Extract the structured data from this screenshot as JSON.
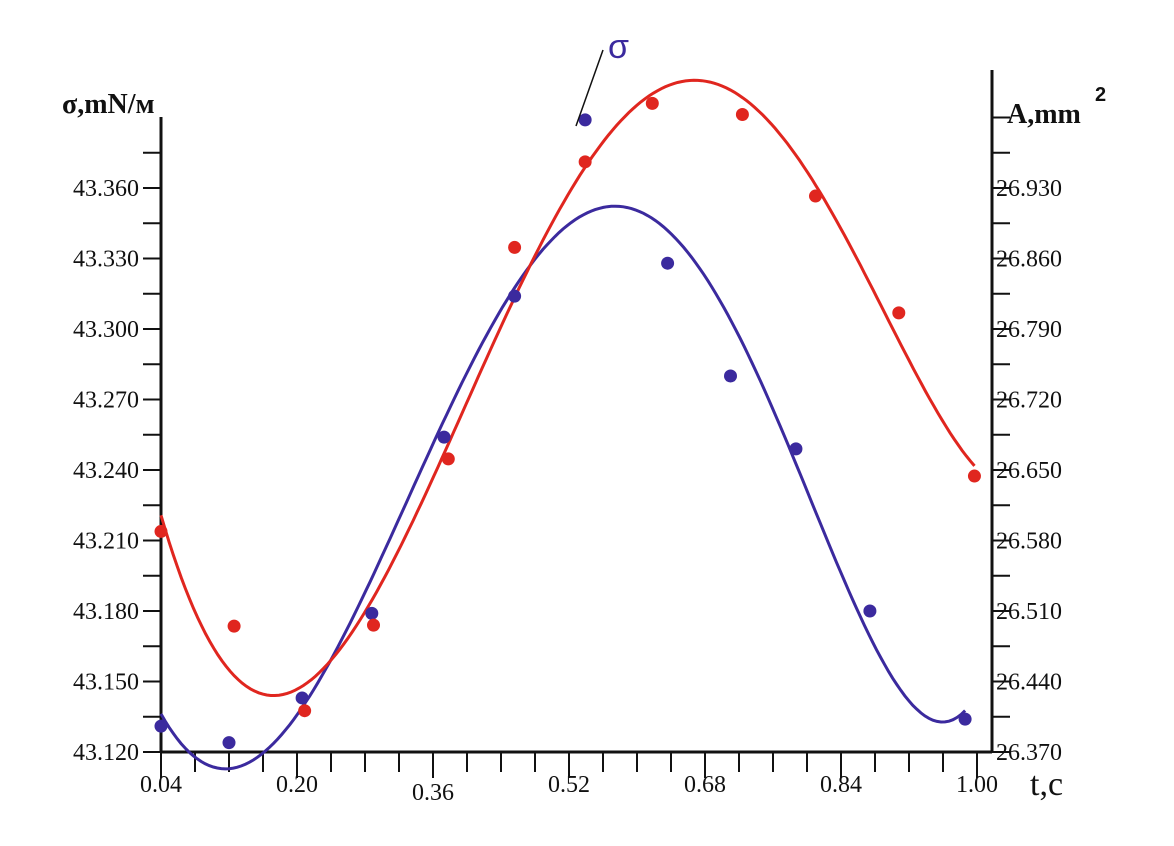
{
  "chart_data": {
    "type": "scatter",
    "xlabel": "t,c",
    "ylabel_left": "σ,mN/м",
    "ylabel_right": "A,mm",
    "ylabel_right_superscript": "2",
    "annotation": "σ",
    "xlim": [
      0.04,
      1.0
    ],
    "ylim_left": [
      43.12,
      43.42
    ],
    "ylim_right": [
      26.37,
      27.07
    ],
    "x_ticks": [
      "0.04",
      "0.20",
      "0.36",
      "0.52",
      "0.68",
      "0.84",
      "1.00"
    ],
    "y_left_ticks": [
      "43.120",
      "43.150",
      "43.180",
      "43.210",
      "43.240",
      "43.270",
      "43.300",
      "43.330",
      "43.360"
    ],
    "y_right_ticks": [
      "26.370",
      "26.440",
      "26.510",
      "26.580",
      "26.650",
      "26.720",
      "26.790",
      "26.860",
      "26.930"
    ],
    "grid": false,
    "series": [
      {
        "axis": "left",
        "color": "#3b2a9e",
        "fit": "smooth curve",
        "x": [
          0.04,
          0.12,
          0.206,
          0.288,
          0.373,
          0.456,
          0.539,
          0.636,
          0.71,
          0.787,
          0.874,
          0.986
        ],
        "y": [
          43.131,
          43.124,
          43.143,
          43.179,
          43.254,
          43.314,
          43.389,
          43.328,
          43.28,
          43.249,
          43.18,
          43.134
        ]
      },
      {
        "axis": "right",
        "color": "#e0261f",
        "fit": "smooth curve",
        "x": [
          0.04,
          0.126,
          0.209,
          0.29,
          0.378,
          0.456,
          0.539,
          0.618,
          0.724,
          0.81,
          0.908,
          0.997
        ],
        "y": [
          26.589,
          26.495,
          26.411,
          26.496,
          26.661,
          26.871,
          26.956,
          27.014,
          27.003,
          26.922,
          26.806,
          26.644
        ]
      }
    ]
  }
}
